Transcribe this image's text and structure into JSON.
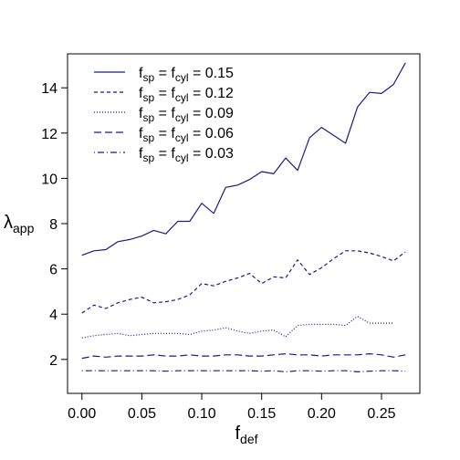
{
  "chart_data": {
    "type": "line",
    "xlabel": {
      "main": "f",
      "sub": "def"
    },
    "ylabel": {
      "main": "λ",
      "sub": "app"
    },
    "xlim": [
      -0.012,
      0.282
    ],
    "ylim": [
      0.5,
      15.5
    ],
    "xticks": [
      0.0,
      0.05,
      0.1,
      0.15,
      0.2,
      0.25
    ],
    "xtick_labels": [
      "0.00",
      "0.05",
      "0.10",
      "0.15",
      "0.20",
      "0.25"
    ],
    "yticks": [
      2,
      4,
      6,
      8,
      10,
      12,
      14
    ],
    "ytick_labels": [
      "2",
      "4",
      "6",
      "8",
      "10",
      "12",
      "14"
    ],
    "grid": false,
    "legend_position": "top-left",
    "line_color": "#1a1a8c",
    "series": [
      {
        "legend": {
          "a": "f",
          "a_sub": "sp",
          "eq1": " = ",
          "b": "f",
          "b_sub": "cyl",
          "eq2": " = 0.15"
        },
        "dash": "solid",
        "x": [
          0.0,
          0.01,
          0.02,
          0.03,
          0.04,
          0.05,
          0.06,
          0.07,
          0.08,
          0.09,
          0.1,
          0.11,
          0.12,
          0.13,
          0.14,
          0.15,
          0.16,
          0.17,
          0.18,
          0.19,
          0.2,
          0.21,
          0.22,
          0.23,
          0.24,
          0.25,
          0.26,
          0.27
        ],
        "y": [
          6.6,
          6.8,
          6.85,
          7.2,
          7.3,
          7.45,
          7.7,
          7.55,
          8.1,
          8.1,
          8.9,
          8.45,
          9.6,
          9.7,
          9.95,
          10.3,
          10.2,
          10.9,
          10.35,
          11.8,
          12.25,
          11.9,
          11.55,
          13.15,
          13.8,
          13.75,
          14.15,
          15.1
        ]
      },
      {
        "legend": {
          "a": "f",
          "a_sub": "sp",
          "eq1": " = ",
          "b": "f",
          "b_sub": "cyl",
          "eq2": " = 0.12"
        },
        "dash": "dashed",
        "x": [
          0.0,
          0.01,
          0.02,
          0.03,
          0.04,
          0.05,
          0.06,
          0.07,
          0.08,
          0.09,
          0.1,
          0.11,
          0.12,
          0.13,
          0.14,
          0.15,
          0.16,
          0.17,
          0.18,
          0.19,
          0.2,
          0.21,
          0.22,
          0.23,
          0.24,
          0.25,
          0.26,
          0.27
        ],
        "y": [
          4.05,
          4.4,
          4.25,
          4.5,
          4.65,
          4.75,
          4.5,
          4.55,
          4.65,
          4.85,
          5.35,
          5.25,
          5.45,
          5.6,
          5.8,
          5.35,
          5.65,
          5.6,
          6.4,
          5.75,
          6.05,
          6.45,
          6.8,
          6.8,
          6.7,
          6.55,
          6.35,
          6.75
        ]
      },
      {
        "legend": {
          "a": "f",
          "a_sub": "sp",
          "eq1": " = ",
          "b": "f",
          "b_sub": "cyl",
          "eq2": " = 0.09"
        },
        "dash": "dotted",
        "x": [
          0.0,
          0.01,
          0.02,
          0.03,
          0.04,
          0.05,
          0.06,
          0.07,
          0.08,
          0.09,
          0.1,
          0.11,
          0.12,
          0.13,
          0.14,
          0.15,
          0.16,
          0.17,
          0.18,
          0.19,
          0.2,
          0.21,
          0.22,
          0.23,
          0.24,
          0.25,
          0.26
        ],
        "y": [
          2.95,
          3.05,
          3.1,
          3.15,
          3.05,
          3.1,
          3.15,
          3.15,
          3.15,
          3.1,
          3.25,
          3.3,
          3.4,
          3.25,
          3.15,
          3.25,
          3.3,
          3.0,
          3.5,
          3.55,
          3.55,
          3.55,
          3.5,
          3.9,
          3.6,
          3.6,
          3.6
        ]
      },
      {
        "legend": {
          "a": "f",
          "a_sub": "sp",
          "eq1": " = ",
          "b": "f",
          "b_sub": "cyl",
          "eq2": " = 0.06"
        },
        "dash": "longdash",
        "x": [
          0.0,
          0.01,
          0.02,
          0.03,
          0.04,
          0.05,
          0.06,
          0.07,
          0.08,
          0.09,
          0.1,
          0.11,
          0.12,
          0.13,
          0.14,
          0.15,
          0.16,
          0.17,
          0.18,
          0.19,
          0.2,
          0.21,
          0.22,
          0.23,
          0.24,
          0.25,
          0.26,
          0.27
        ],
        "y": [
          2.05,
          2.15,
          2.1,
          2.15,
          2.15,
          2.15,
          2.2,
          2.15,
          2.15,
          2.2,
          2.15,
          2.15,
          2.2,
          2.2,
          2.15,
          2.15,
          2.2,
          2.25,
          2.2,
          2.2,
          2.15,
          2.2,
          2.2,
          2.2,
          2.25,
          2.2,
          2.1,
          2.2
        ]
      },
      {
        "legend": {
          "a": "f",
          "a_sub": "sp",
          "eq1": " = ",
          "b": "f",
          "b_sub": "cyl",
          "eq2": " = 0.03"
        },
        "dash": "dotdash",
        "x": [
          0.0,
          0.01,
          0.02,
          0.03,
          0.04,
          0.05,
          0.06,
          0.07,
          0.08,
          0.09,
          0.1,
          0.11,
          0.12,
          0.13,
          0.14,
          0.15,
          0.16,
          0.17,
          0.18,
          0.19,
          0.2,
          0.21,
          0.22,
          0.23,
          0.24,
          0.25,
          0.26,
          0.27
        ],
        "y": [
          1.5,
          1.5,
          1.5,
          1.5,
          1.5,
          1.5,
          1.5,
          1.48,
          1.5,
          1.5,
          1.5,
          1.5,
          1.5,
          1.5,
          1.5,
          1.48,
          1.5,
          1.45,
          1.5,
          1.5,
          1.48,
          1.5,
          1.5,
          1.45,
          1.48,
          1.5,
          1.5,
          1.48
        ]
      }
    ]
  }
}
